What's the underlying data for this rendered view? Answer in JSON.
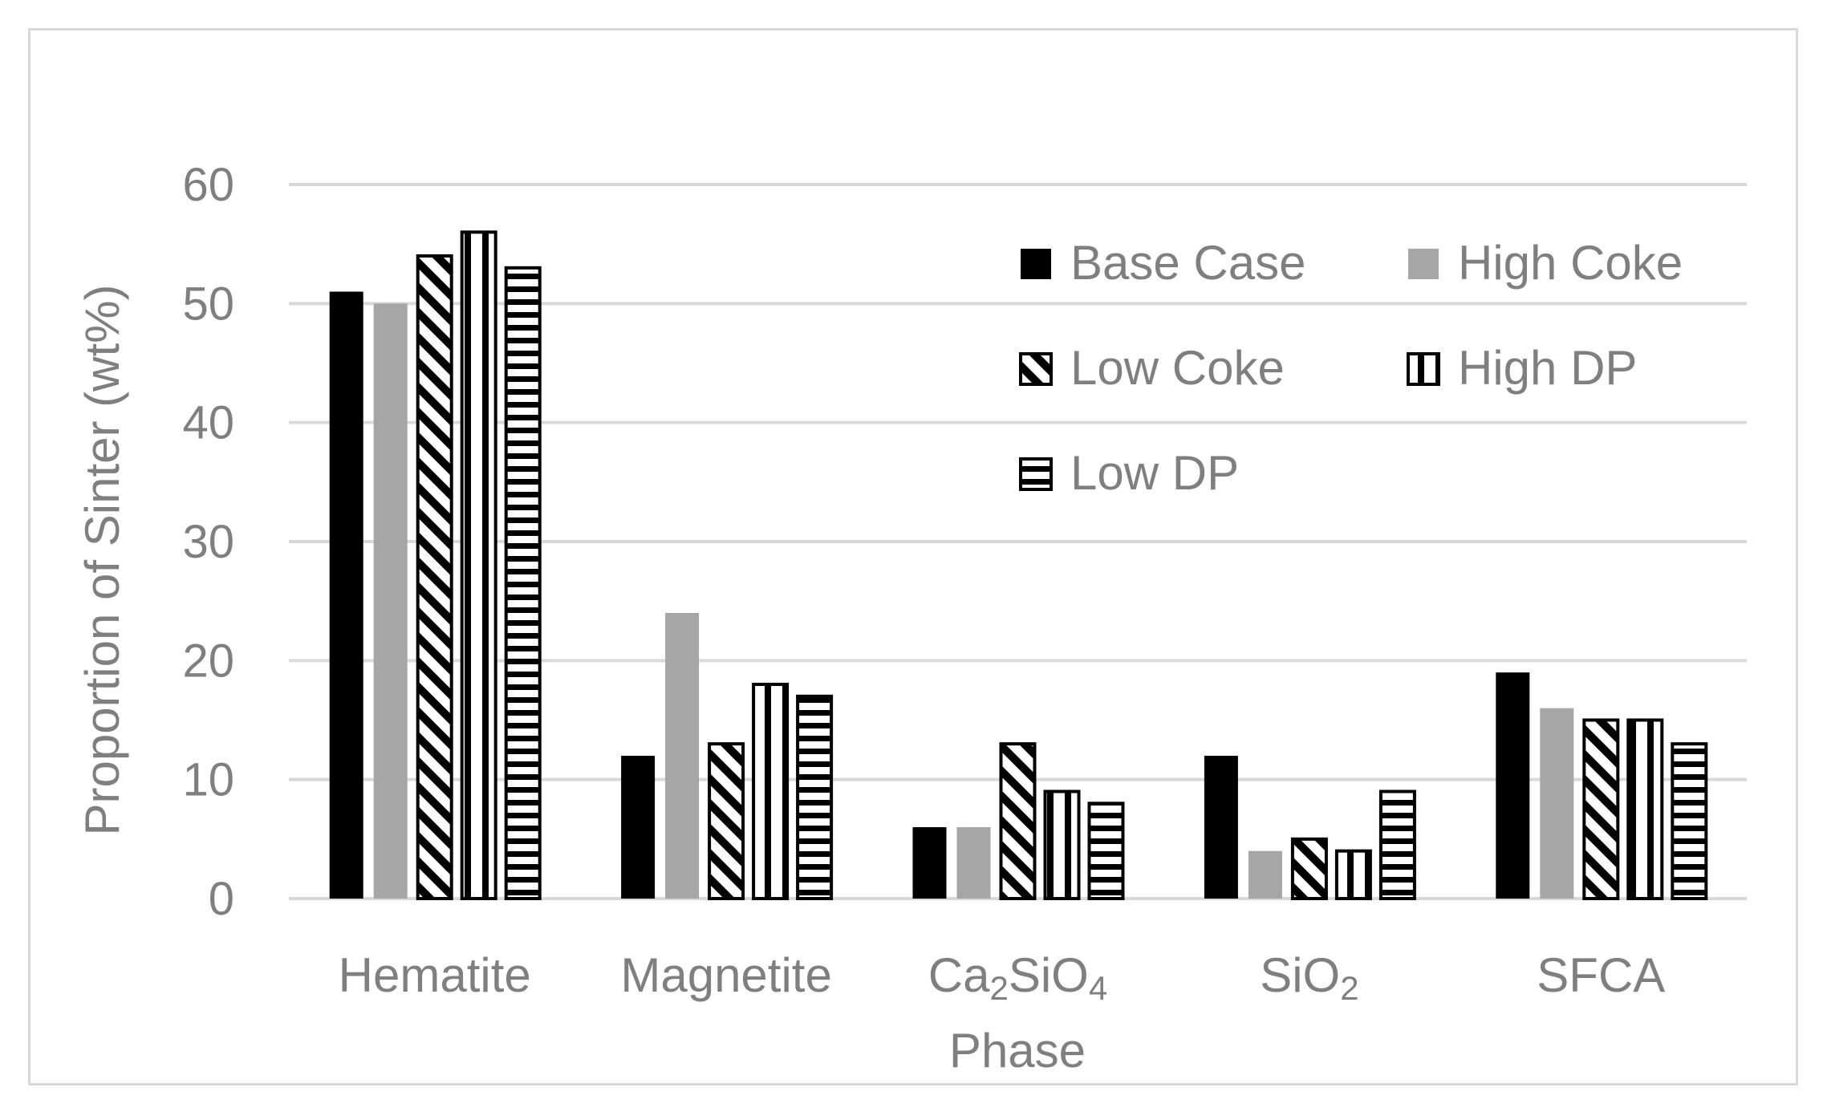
{
  "chart_data": {
    "type": "bar",
    "title": "",
    "xlabel": "Phase",
    "ylabel": "Proportion of Sinter (wt%)",
    "ylim": [
      0,
      60
    ],
    "yticks": [
      "0",
      "10",
      "20",
      "30",
      "40",
      "50",
      "60"
    ],
    "grid": true,
    "legend_position": "top-right",
    "categories": [
      {
        "base": "Hematite",
        "sub": "",
        "tail": ""
      },
      {
        "base": "Magnetite",
        "sub": "",
        "tail": ""
      },
      {
        "base": "Ca",
        "sub": "2",
        "tail": "SiO",
        "sub2": "4"
      },
      {
        "base": "SiO",
        "sub": "2",
        "tail": ""
      },
      {
        "base": "SFCA",
        "sub": "",
        "tail": ""
      }
    ],
    "series": [
      {
        "name": "Base Case",
        "pattern": "solid-black",
        "values": [
          51,
          12,
          6,
          12,
          19
        ]
      },
      {
        "name": "High Coke",
        "pattern": "solid-gray",
        "values": [
          50,
          24,
          6,
          4,
          16
        ]
      },
      {
        "name": "Low Coke",
        "pattern": "diagonal",
        "values": [
          54,
          13,
          13,
          5,
          15
        ]
      },
      {
        "name": "High DP",
        "pattern": "vertical",
        "values": [
          56,
          18,
          9,
          4,
          15
        ]
      },
      {
        "name": "Low DP",
        "pattern": "horizontal",
        "values": [
          53,
          17,
          8,
          9,
          13
        ]
      }
    ],
    "colors": {
      "black": "#000000",
      "gray": "#a6a6a6",
      "grid": "#d9d9d9",
      "text": "#7f7f7f"
    }
  }
}
